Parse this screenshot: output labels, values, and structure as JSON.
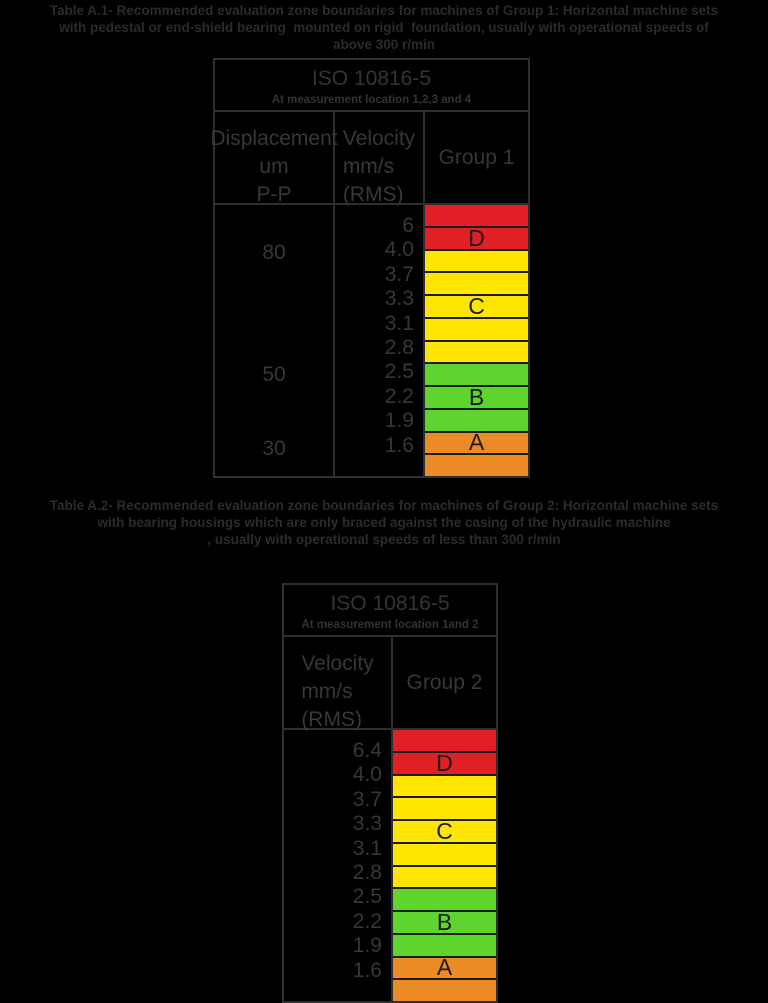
{
  "page": {
    "background": "#000000"
  },
  "colors": {
    "zone_a": "#ea8b25",
    "zone_b": "#5dd52e",
    "zone_c": "#ffe602",
    "zone_d": "#e12026"
  },
  "captions": {
    "table1": [
      "Table A.1- Recommended evaluation zone boundaries for machines of Group 1: Horizontal machine sets",
      "with pedestal or end-shield bearing  mounted on rigid  foundation, usually with operational speeds of",
      "above 300 r/min"
    ],
    "table2": [
      "Table A.2- Recommended evaluation zone boundaries for machines of Group 2: Horizontal machine sets",
      "with bearing housings which are only braced against the casing of the hydraulic machine",
      ", usually with operational speeds of less than 300 r/min"
    ]
  },
  "tables": [
    {
      "name": "Table A.1",
      "standard": "ISO 10816-5",
      "location_note": "At measurement location 1,2,3 and 4",
      "columns": {
        "displacement": {
          "lines": [
            "Displacement",
            "um",
            "P-P"
          ]
        },
        "velocity": {
          "lines": [
            "Velocity",
            "mm/s",
            "(RMS)"
          ]
        },
        "group": {
          "lines": [
            "Group 1"
          ]
        }
      },
      "displacement_values": [
        {
          "value": "80",
          "boundary_index": 1
        },
        {
          "value": "50",
          "boundary_index": 6
        },
        {
          "value": "30",
          "boundary_index": 9
        }
      ],
      "velocity_values": [
        "6",
        "4.0",
        "3.7",
        "3.3",
        "3.1",
        "2.8",
        "2.5",
        "2.2",
        "1.9",
        "1.6"
      ],
      "zones": [
        {
          "zone": "d",
          "letter": ""
        },
        {
          "zone": "d",
          "letter": "D"
        },
        {
          "zone": "c",
          "letter": ""
        },
        {
          "zone": "c",
          "letter": ""
        },
        {
          "zone": "c",
          "letter": "C"
        },
        {
          "zone": "c",
          "letter": ""
        },
        {
          "zone": "c",
          "letter": ""
        },
        {
          "zone": "b",
          "letter": ""
        },
        {
          "zone": "b",
          "letter": "B"
        },
        {
          "zone": "b",
          "letter": ""
        },
        {
          "zone": "a",
          "letter": "A"
        },
        {
          "zone": "a",
          "letter": ""
        }
      ]
    },
    {
      "name": "Table A.2",
      "standard": "ISO 10816-5",
      "location_note": "At measurement location 1and 2",
      "columns": {
        "velocity": {
          "lines": [
            "Velocity",
            "mm/s",
            "(RMS)"
          ]
        },
        "group": {
          "lines": [
            "Group 2"
          ]
        }
      },
      "displacement_values": [],
      "velocity_values": [
        "6.4",
        "4.0",
        "3.7",
        "3.3",
        "3.1",
        "2.8",
        "2.5",
        "2.2",
        "1.9",
        "1.6"
      ],
      "zones": [
        {
          "zone": "d",
          "letter": ""
        },
        {
          "zone": "d",
          "letter": "D"
        },
        {
          "zone": "c",
          "letter": ""
        },
        {
          "zone": "c",
          "letter": ""
        },
        {
          "zone": "c",
          "letter": "C"
        },
        {
          "zone": "c",
          "letter": ""
        },
        {
          "zone": "c",
          "letter": ""
        },
        {
          "zone": "b",
          "letter": ""
        },
        {
          "zone": "b",
          "letter": "B"
        },
        {
          "zone": "b",
          "letter": ""
        },
        {
          "zone": "a",
          "letter": "A"
        },
        {
          "zone": "a",
          "letter": ""
        }
      ]
    }
  ]
}
